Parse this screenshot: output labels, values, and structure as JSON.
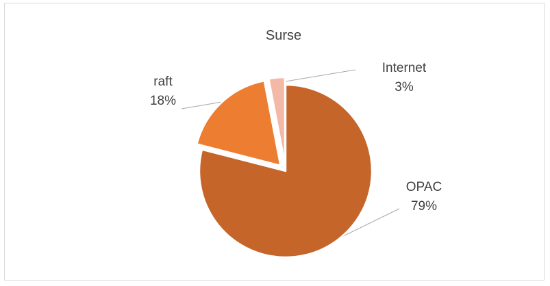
{
  "chart_data": {
    "type": "pie",
    "title": "Surse",
    "slices": [
      {
        "label": "OPAC",
        "value": 79,
        "pct_label": "79%",
        "color": "#c5652a",
        "exploded": false
      },
      {
        "label": "raft",
        "value": 18,
        "pct_label": "18%",
        "color": "#ed7d31",
        "exploded": true
      },
      {
        "label": "Internet",
        "value": 3,
        "pct_label": "3%",
        "color": "#f4b8a6",
        "exploded": true
      }
    ],
    "start_angle_deg": 0,
    "direction": "clockwise",
    "slice_border_color": "#ffffff",
    "leader_line_color": "#a6a6a6",
    "legend": "none"
  }
}
